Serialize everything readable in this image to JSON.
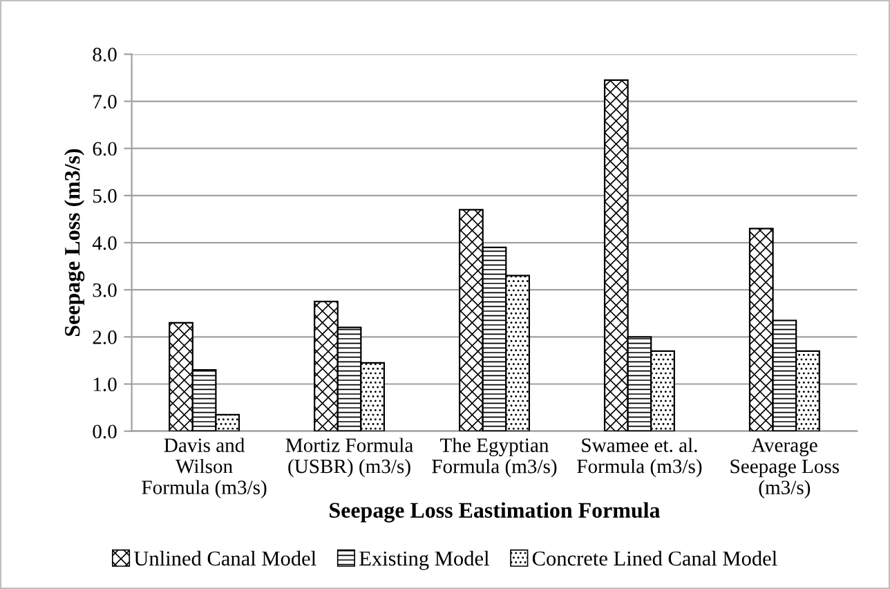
{
  "chart_data": {
    "type": "bar",
    "xlabel": "Seepage Loss Eastimation Formula",
    "ylabel": "Seepage Loss (m3/s)",
    "categories": [
      "Davis and\nWilson\nFormula (m3/s)",
      "Mortiz Formula\n(USBR) (m3/s)",
      "The Egyptian\nFormula (m3/s)",
      "Swamee et. al.\nFormula (m3/s)",
      "Average\nSeepage Loss\n(m3/s)"
    ],
    "series": [
      {
        "name": "Unlined Canal Model",
        "color": "#000000",
        "values": [
          2.3,
          2.75,
          4.7,
          7.45,
          4.3
        ]
      },
      {
        "name": "Existing Model",
        "color": "#000000",
        "values": [
          1.3,
          2.2,
          3.9,
          2.0,
          2.35
        ]
      },
      {
        "name": "Concrete Lined Canal Model",
        "color": "#000000",
        "values": [
          0.35,
          1.45,
          3.3,
          1.7,
          1.7
        ]
      }
    ],
    "ylim": [
      0,
      8
    ],
    "yticks": [
      {
        "value": 0,
        "label": "0.0"
      },
      {
        "value": 1,
        "label": "1.0"
      },
      {
        "value": 2,
        "label": "2.0"
      },
      {
        "value": 3,
        "label": "3.0"
      },
      {
        "value": 4,
        "label": "4.0"
      },
      {
        "value": 5,
        "label": "5.0"
      },
      {
        "value": 6,
        "label": "6.0"
      },
      {
        "value": 7,
        "label": "7.0"
      },
      {
        "value": 8,
        "label": "8.0"
      }
    ],
    "grid": "y",
    "legend": "bottom"
  }
}
